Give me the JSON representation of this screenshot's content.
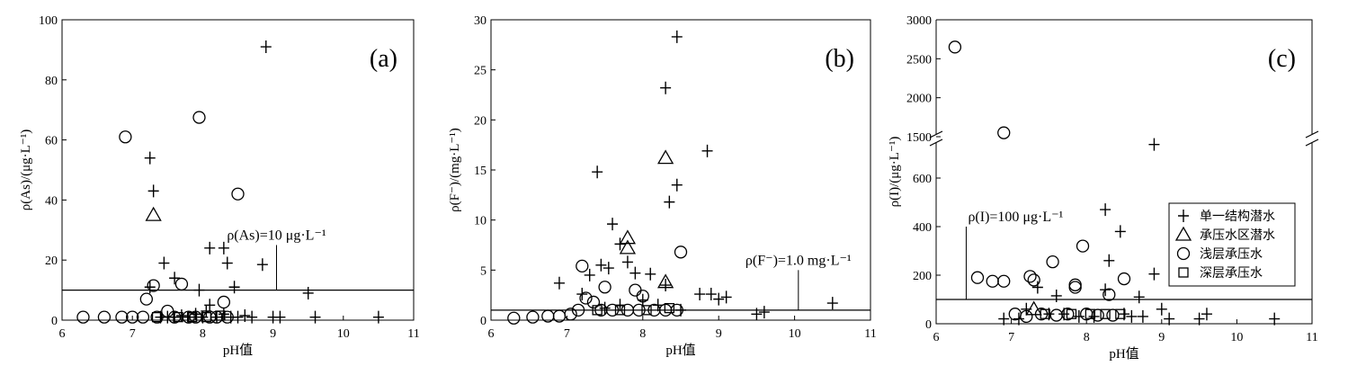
{
  "figure": {
    "xlabel": "pH值",
    "legend": {
      "placement": "right",
      "entries": [
        {
          "symbol": "plus",
          "label": "单一结构潜水"
        },
        {
          "symbol": "triangle",
          "label": "承压水区潜水"
        },
        {
          "symbol": "circle",
          "label": "浅层承压水"
        },
        {
          "symbol": "square",
          "label": "深层承压水"
        }
      ]
    }
  },
  "chart_data": [
    {
      "type": "scatter",
      "panel_label": "(a)",
      "ylabel": "ρ(As)/(μg·L⁻¹)",
      "xlim": [
        6,
        11
      ],
      "ylim": [
        0,
        100
      ],
      "xticks": [
        "6",
        "7",
        "8",
        "9",
        "10",
        "11"
      ],
      "yticks": [
        "0",
        "20",
        "40",
        "60",
        "80",
        "100"
      ],
      "threshold": {
        "value": 10,
        "label": "ρ(As)=10 μg·L⁻¹",
        "label_x": 9.05,
        "label_y": 25
      },
      "series": [
        {
          "symbol": "plus",
          "points": [
            [
              8.9,
              91
            ],
            [
              7.25,
              54
            ],
            [
              7.3,
              43
            ],
            [
              8.1,
              24
            ],
            [
              8.3,
              24
            ],
            [
              8.35,
              19
            ],
            [
              7.45,
              19
            ],
            [
              8.85,
              18.5
            ],
            [
              7.6,
              14
            ],
            [
              8.45,
              11
            ],
            [
              7.25,
              11
            ],
            [
              7.95,
              10
            ],
            [
              9.5,
              9
            ],
            [
              8.1,
              5
            ],
            [
              8.05,
              3
            ],
            [
              8.3,
              2
            ],
            [
              7.9,
              2
            ],
            [
              7.7,
              1.5
            ],
            [
              7.8,
              1
            ],
            [
              8.2,
              1
            ],
            [
              8.6,
              1.5
            ],
            [
              8.7,
              1
            ],
            [
              9.0,
              1
            ],
            [
              9.6,
              1
            ],
            [
              10.5,
              1
            ],
            [
              9.1,
              1
            ],
            [
              7.4,
              1
            ],
            [
              7.5,
              1
            ],
            [
              7.6,
              1
            ],
            [
              8.0,
              1
            ],
            [
              8.4,
              1
            ],
            [
              8.5,
              1
            ]
          ]
        },
        {
          "symbol": "triangle",
          "points": [
            [
              7.3,
              35
            ]
          ]
        },
        {
          "symbol": "circle",
          "points": [
            [
              6.9,
              61
            ],
            [
              7.95,
              67.5
            ],
            [
              8.5,
              42
            ],
            [
              7.3,
              11.5
            ],
            [
              7.7,
              12
            ],
            [
              8.3,
              6
            ],
            [
              7.2,
              7
            ],
            [
              6.3,
              1
            ],
            [
              6.6,
              1
            ],
            [
              6.85,
              1
            ],
            [
              7.0,
              1
            ],
            [
              7.15,
              1
            ],
            [
              7.35,
              1
            ],
            [
              7.5,
              3
            ],
            [
              7.6,
              1
            ],
            [
              7.8,
              1
            ],
            [
              7.9,
              1
            ],
            [
              8.1,
              1
            ],
            [
              8.2,
              1
            ],
            [
              8.35,
              1
            ]
          ]
        },
        {
          "symbol": "square",
          "points": [
            [
              7.35,
              1
            ],
            [
              7.65,
              1
            ],
            [
              7.85,
              1
            ],
            [
              8.05,
              1
            ],
            [
              8.25,
              1.5
            ]
          ]
        }
      ]
    },
    {
      "type": "scatter",
      "panel_label": "(b)",
      "ylabel": "ρ(F⁻)/(mg·L⁻¹)",
      "xlim": [
        6,
        11
      ],
      "ylim": [
        0,
        30
      ],
      "xticks": [
        "6",
        "7",
        "8",
        "9",
        "10",
        "11"
      ],
      "yticks": [
        "0",
        "5",
        "10",
        "15",
        "20",
        "25",
        "30"
      ],
      "threshold": {
        "value": 1.0,
        "label": "ρ(F⁻)=1.0 mg·L⁻¹",
        "label_x": 10.05,
        "label_y": 5
      },
      "series": [
        {
          "symbol": "plus",
          "points": [
            [
              8.45,
              28.3
            ],
            [
              8.3,
              23.2
            ],
            [
              7.4,
              14.8
            ],
            [
              8.85,
              16.9
            ],
            [
              8.45,
              13.5
            ],
            [
              8.35,
              11.8
            ],
            [
              7.6,
              9.6
            ],
            [
              7.7,
              7.6
            ],
            [
              7.8,
              5.8
            ],
            [
              7.45,
              5.5
            ],
            [
              7.55,
              5.2
            ],
            [
              8.1,
              4.6
            ],
            [
              8.3,
              3.5
            ],
            [
              6.9,
              3.7
            ],
            [
              7.2,
              2.6
            ],
            [
              8.75,
              2.6
            ],
            [
              8.9,
              2.6
            ],
            [
              9.0,
              2.1
            ],
            [
              9.1,
              2.3
            ],
            [
              9.5,
              0.6
            ],
            [
              9.6,
              0.8
            ],
            [
              10.5,
              1.7
            ],
            [
              7.3,
              4.5
            ],
            [
              7.9,
              4.7
            ],
            [
              8.0,
              2
            ],
            [
              8.2,
              1.5
            ],
            [
              7.7,
              1.5
            ],
            [
              7.5,
              1.2
            ],
            [
              8.5,
              1
            ]
          ]
        },
        {
          "symbol": "triangle",
          "points": [
            [
              8.3,
              16.2
            ],
            [
              7.8,
              8.2
            ],
            [
              7.8,
              7.2
            ],
            [
              8.3,
              3.8
            ]
          ]
        },
        {
          "symbol": "circle",
          "points": [
            [
              8.5,
              6.8
            ],
            [
              7.2,
              5.4
            ],
            [
              7.5,
              3.3
            ],
            [
              7.9,
              3
            ],
            [
              8.0,
              2.4
            ],
            [
              7.25,
              2.2
            ],
            [
              7.35,
              1.8
            ],
            [
              7.05,
              0.6
            ],
            [
              6.3,
              0.2
            ],
            [
              6.55,
              0.3
            ],
            [
              6.75,
              0.4
            ],
            [
              6.9,
              0.4
            ],
            [
              7.15,
              1
            ],
            [
              7.45,
              1
            ],
            [
              7.6,
              1
            ],
            [
              7.8,
              1
            ],
            [
              7.95,
              1
            ],
            [
              8.15,
              1
            ],
            [
              8.3,
              1
            ],
            [
              8.45,
              1
            ]
          ]
        },
        {
          "symbol": "square",
          "points": [
            [
              7.4,
              1
            ],
            [
              7.7,
              1
            ],
            [
              8.05,
              1
            ],
            [
              8.35,
              1.2
            ]
          ]
        }
      ]
    },
    {
      "type": "scatter",
      "panel_label": "(c)",
      "ylabel": "ρ(I)/(μg·L⁻¹)",
      "axis_break": "600–1500",
      "xlim": [
        6,
        11
      ],
      "ylim": [
        0,
        3000
      ],
      "xticks": [
        "6",
        "7",
        "8",
        "9",
        "10",
        "11"
      ],
      "yticks_lower": [
        "0",
        "200",
        "400",
        "600"
      ],
      "yticks_upper": [
        "1500",
        "2000",
        "2500",
        "3000"
      ],
      "threshold": {
        "value": 100,
        "label": "ρ(I)=100 μg·L⁻¹",
        "label_x": 6.4,
        "label_y": 400
      },
      "series": [
        {
          "symbol": "plus",
          "points": [
            [
              8.9,
              1400
            ],
            [
              8.25,
              470
            ],
            [
              8.45,
              380
            ],
            [
              8.3,
              260
            ],
            [
              8.9,
              205
            ],
            [
              7.35,
              150
            ],
            [
              7.6,
              115
            ],
            [
              8.25,
              140
            ],
            [
              8.7,
              110
            ],
            [
              7.2,
              60
            ],
            [
              7.5,
              40
            ],
            [
              7.7,
              40
            ],
            [
              8.5,
              40
            ],
            [
              9.0,
              60
            ],
            [
              9.1,
              20
            ],
            [
              9.5,
              20
            ],
            [
              9.6,
              40
            ],
            [
              10.5,
              20
            ],
            [
              6.9,
              20
            ],
            [
              7.1,
              20
            ],
            [
              7.9,
              30
            ],
            [
              8.1,
              30
            ],
            [
              8.6,
              30
            ],
            [
              8.75,
              30
            ]
          ]
        },
        {
          "symbol": "triangle",
          "points": [
            [
              7.3,
              60
            ]
          ]
        },
        {
          "symbol": "circle",
          "points": [
            [
              6.25,
              2650
            ],
            [
              6.9,
              1550
            ],
            [
              7.95,
              320
            ],
            [
              7.25,
              195
            ],
            [
              7.3,
              180
            ],
            [
              6.55,
              190
            ],
            [
              6.75,
              175
            ],
            [
              6.9,
              175
            ],
            [
              7.55,
              255
            ],
            [
              7.85,
              160
            ],
            [
              7.85,
              150
            ],
            [
              8.5,
              185
            ],
            [
              8.3,
              120
            ],
            [
              7.05,
              40
            ],
            [
              7.2,
              30
            ],
            [
              7.4,
              40
            ],
            [
              7.6,
              35
            ],
            [
              7.75,
              40
            ],
            [
              8.0,
              40
            ],
            [
              8.15,
              35
            ],
            [
              8.35,
              35
            ]
          ]
        },
        {
          "symbol": "square",
          "points": [
            [
              7.45,
              40
            ],
            [
              7.8,
              40
            ],
            [
              8.05,
              40
            ],
            [
              8.25,
              40
            ],
            [
              8.45,
              40
            ]
          ]
        }
      ]
    }
  ]
}
